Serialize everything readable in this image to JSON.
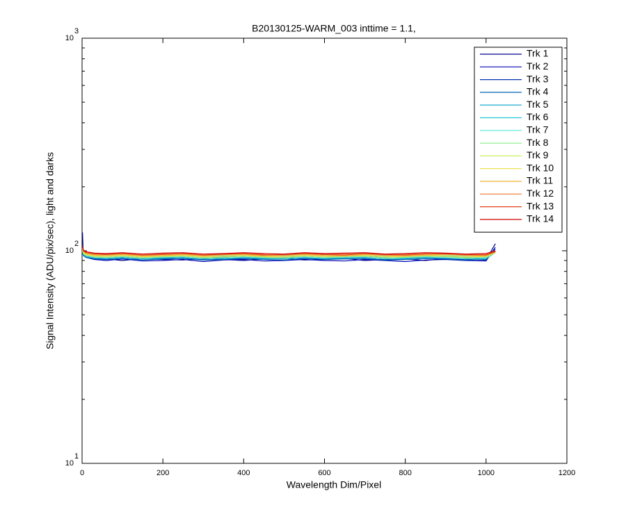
{
  "chart_data": {
    "type": "line",
    "title": "B20130125-WARM_003 inttime = 1.1,",
    "x_label": "Wavelength Dim/Pixel",
    "y_label": "Signal Intensity (ADU/pix/sec), light and darks",
    "x": [
      1,
      3,
      10,
      30,
      60,
      100,
      150,
      200,
      250,
      300,
      350,
      400,
      450,
      500,
      550,
      600,
      650,
      700,
      750,
      800,
      850,
      900,
      950,
      1000,
      1023
    ],
    "xlim": [
      0,
      1200
    ],
    "xticks": [
      0,
      200,
      400,
      600,
      800,
      1000,
      1200
    ],
    "ylim": [
      10,
      1000
    ],
    "log_y": true,
    "grid": false,
    "legend": "upper right",
    "yticks": [
      {
        "value": 10,
        "label": "10",
        "exponent": "1"
      },
      {
        "value": 100,
        "label": "10",
        "exponent": "2"
      },
      {
        "value": 1000,
        "label": "10",
        "exponent": "3"
      }
    ],
    "series": [
      {
        "name": "Trk 1",
        "color": "#00008c",
        "values": [
          122,
          96,
          94,
          92,
          91.5,
          90,
          92,
          91,
          90.5,
          92,
          91,
          90,
          91.5,
          92,
          90.5,
          91,
          92,
          90,
          91,
          91.5,
          90,
          92,
          91,
          90.5,
          108
        ]
      },
      {
        "name": "Trk 2",
        "color": "#0000b4",
        "values": [
          100,
          95,
          93,
          91,
          90,
          91.5,
          89.5,
          90,
          91,
          89,
          90.5,
          91,
          89.5,
          90,
          91,
          90,
          89.5,
          91,
          90,
          89,
          90.5,
          91,
          90,
          89.5,
          104
        ]
      },
      {
        "name": "Trk 3",
        "color": "#0030b0",
        "values": [
          101,
          96,
          94,
          92.5,
          92,
          93,
          91.5,
          92,
          93,
          91,
          92.5,
          92,
          91.5,
          93,
          92,
          91.5,
          92.5,
          93,
          91.5,
          92,
          93,
          92,
          91.5,
          92.5,
          102
        ]
      },
      {
        "name": "Trk 4",
        "color": "#0064b4",
        "values": [
          99,
          95,
          93,
          91.5,
          91,
          92,
          90.5,
          91.5,
          92,
          90.5,
          91,
          92,
          91,
          90.5,
          92,
          91,
          91.5,
          92,
          90.5,
          91,
          92,
          91.5,
          90.5,
          91,
          100
        ]
      },
      {
        "name": "Trk 5",
        "color": "#00a0c8",
        "values": [
          101,
          97,
          95,
          93.5,
          93,
          94,
          92.5,
          93,
          94,
          92.5,
          93.5,
          94,
          92.5,
          93,
          94,
          93,
          92.5,
          94,
          93,
          92.5,
          93.5,
          94,
          93,
          92.5,
          99
        ]
      },
      {
        "name": "Trk 6",
        "color": "#20c8d8",
        "values": [
          100,
          96,
          94,
          92.5,
          92,
          93,
          91.5,
          92.5,
          93,
          91.5,
          92,
          93,
          92,
          91.5,
          93,
          92,
          92.5,
          93,
          91.5,
          92,
          93,
          92.5,
          91.5,
          92,
          98
        ]
      },
      {
        "name": "Trk 7",
        "color": "#50e8d0",
        "values": [
          102,
          98,
          96,
          94.5,
          94,
          95,
          93.5,
          94,
          95,
          93.5,
          94.5,
          95,
          93.5,
          94,
          95,
          94,
          93.5,
          95,
          94,
          93.5,
          94.5,
          95,
          94,
          93.5,
          99
        ]
      },
      {
        "name": "Trk 8",
        "color": "#90f090",
        "values": [
          101,
          97,
          95,
          93.5,
          93,
          94,
          92.5,
          93.5,
          94,
          92.5,
          93,
          94,
          93,
          92.5,
          94,
          93,
          93.5,
          94,
          92.5,
          93,
          94,
          93.5,
          92.5,
          93,
          98
        ]
      },
      {
        "name": "Trk 9",
        "color": "#c8f060",
        "values": [
          103,
          99,
          97,
          95.5,
          95,
          96,
          94.5,
          95,
          96,
          94.5,
          95.5,
          96,
          94.5,
          95,
          96,
          95,
          94.5,
          96,
          95,
          94.5,
          95.5,
          96,
          95,
          94.5,
          99
        ]
      },
      {
        "name": "Trk 10",
        "color": "#e8e040",
        "values": [
          102,
          98,
          96,
          94.5,
          94,
          95,
          93.5,
          94.5,
          95,
          93.5,
          94,
          95,
          94,
          93.5,
          95,
          94,
          94.5,
          95,
          93.5,
          94,
          95,
          94.5,
          93.5,
          94,
          98
        ]
      },
      {
        "name": "Trk 11",
        "color": "#f0b030",
        "values": [
          103,
          99,
          97,
          95.5,
          95,
          96,
          94.5,
          95,
          96,
          94.5,
          95.5,
          96,
          94.5,
          95,
          96,
          95,
          94.5,
          96,
          95,
          94.5,
          95.5,
          96,
          95,
          94.5,
          99
        ]
      },
      {
        "name": "Trk 12",
        "color": "#f07830",
        "values": [
          104,
          100,
          98,
          96.5,
          96,
          97,
          95.5,
          96.5,
          97,
          95.5,
          96,
          97,
          96,
          95.5,
          97,
          96,
          96.5,
          97,
          95.5,
          96,
          97,
          96.5,
          95.5,
          96,
          99
        ]
      },
      {
        "name": "Trk 13",
        "color": "#e04018",
        "values": [
          104,
          100,
          98,
          96.5,
          96,
          97,
          95.5,
          96,
          97,
          95.5,
          96.5,
          97,
          95.5,
          96,
          97,
          96,
          95.5,
          97,
          96,
          95.5,
          96.5,
          97,
          96,
          95.5,
          99
        ]
      },
      {
        "name": "Trk 14",
        "color": "#d00000",
        "values": [
          105,
          101,
          99,
          97.5,
          97,
          98,
          96.5,
          97.5,
          98,
          96.5,
          97,
          98,
          97,
          96.5,
          98,
          97,
          97.5,
          98,
          96.5,
          97,
          98,
          97.5,
          96.5,
          97,
          100
        ]
      }
    ]
  }
}
